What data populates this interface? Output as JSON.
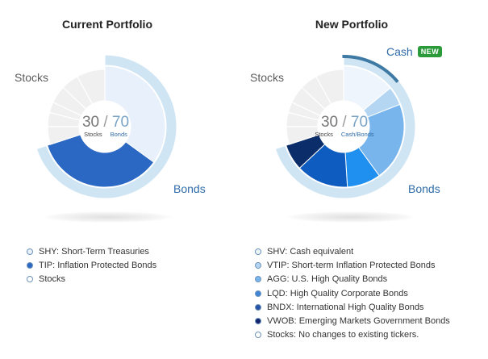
{
  "current": {
    "title": "Current Portfolio",
    "stocks_label": "Stocks",
    "bonds_label": "Bonds",
    "center": {
      "stocks_pct": "30",
      "sep": "/",
      "bonds_pct": "70",
      "stocks_caption": "Stocks",
      "bonds_caption": "Bonds"
    },
    "legend": [
      {
        "text": "SHY: Short-Term Treasuries",
        "color": "#e8f1fb"
      },
      {
        "text": "TIP: Inflation Protected Bonds",
        "color": "#2b68c4"
      },
      {
        "text": "Stocks",
        "color": "#ffffff"
      }
    ]
  },
  "new": {
    "title": "New Portfolio",
    "stocks_label": "Stocks",
    "bonds_label": "Bonds",
    "cash_label": "Cash",
    "badge": "NEW",
    "center": {
      "stocks_pct": "30",
      "sep": "/",
      "bonds_pct": "70",
      "stocks_caption": "Stocks",
      "bonds_caption": "Cash/Bonds"
    },
    "legend": [
      {
        "text": "SHV: Cash equivalent",
        "color": "#eef5fc"
      },
      {
        "text": "VTIP: Short-term Inflation Protected Bonds",
        "color": "#b5d6f3"
      },
      {
        "text": "AGG: U.S. High Quality Bonds",
        "color": "#78b5ec"
      },
      {
        "text": "LQD:  High Quality Corporate Bonds",
        "color": "#3f86d6"
      },
      {
        "text": "BNDX: International High Quality Bonds",
        "color": "#2652a8"
      },
      {
        "text": "VWOB: Emerging Markets Government Bonds",
        "color": "#14246e"
      },
      {
        "text": "Stocks: No changes to existing tickers.",
        "color": "#ffffff"
      }
    ]
  },
  "chart_data": [
    {
      "type": "pie",
      "title": "Current Portfolio",
      "categories": [
        "SHY",
        "TIP",
        "Stocks"
      ],
      "values": [
        35,
        35,
        30
      ],
      "groups": [
        {
          "name": "Stocks",
          "value": 30
        },
        {
          "name": "Bonds",
          "value": 70
        }
      ],
      "stock_slices": [
        5,
        4,
        3,
        5,
        5,
        8
      ]
    },
    {
      "type": "pie",
      "title": "New Portfolio",
      "categories": [
        "SHV",
        "VTIP",
        "AGG",
        "LQD",
        "BNDX",
        "VWOB",
        "Stocks"
      ],
      "values": [
        14,
        5,
        21,
        9,
        14,
        7,
        30
      ],
      "groups": [
        {
          "name": "Stocks",
          "value": 30
        },
        {
          "name": "Cash",
          "value": 14
        },
        {
          "name": "Bonds",
          "value": 56
        }
      ],
      "stock_slices": [
        5,
        4,
        3,
        5,
        5,
        8
      ]
    }
  ]
}
